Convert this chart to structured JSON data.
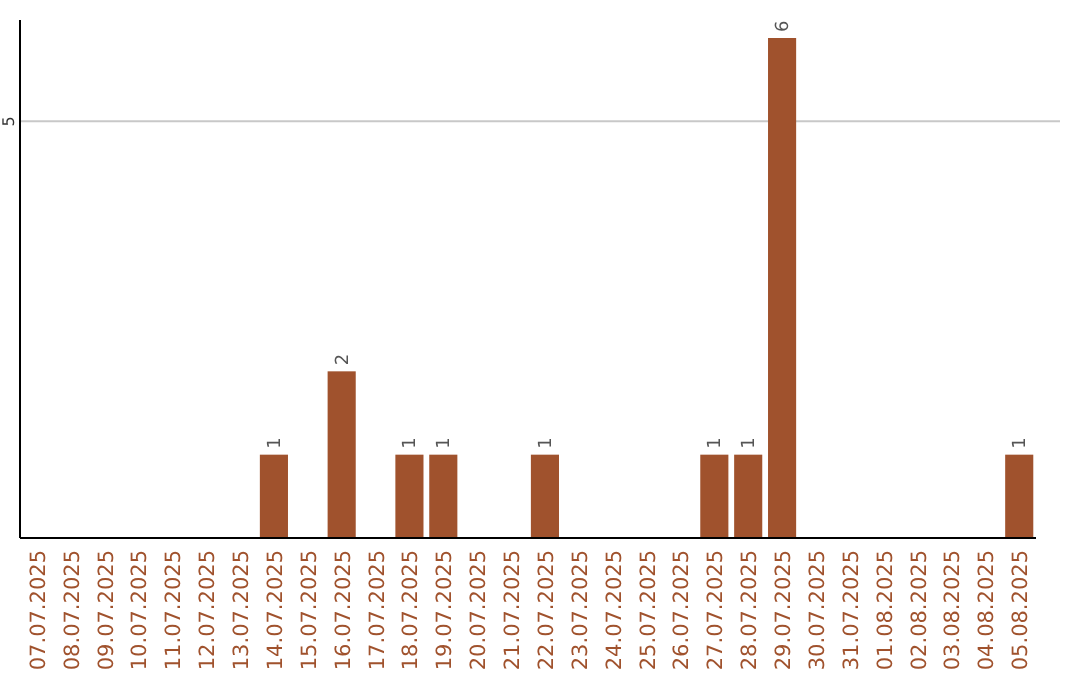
{
  "chart_data": {
    "type": "bar",
    "categories": [
      "07.07.2025",
      "08.07.2025",
      "09.07.2025",
      "10.07.2025",
      "11.07.2025",
      "12.07.2025",
      "13.07.2025",
      "14.07.2025",
      "15.07.2025",
      "16.07.2025",
      "17.07.2025",
      "18.07.2025",
      "19.07.2025",
      "20.07.2025",
      "21.07.2025",
      "22.07.2025",
      "23.07.2025",
      "24.07.2025",
      "25.07.2025",
      "26.07.2025",
      "27.07.2025",
      "28.07.2025",
      "29.07.2025",
      "30.07.2025",
      "31.07.2025",
      "01.08.2025",
      "02.08.2025",
      "03.08.2025",
      "04.08.2025",
      "05.08.2025"
    ],
    "values": [
      0,
      0,
      0,
      0,
      0,
      0,
      0,
      1,
      0,
      2,
      0,
      1,
      1,
      0,
      0,
      1,
      0,
      0,
      0,
      0,
      1,
      1,
      6,
      0,
      0,
      0,
      0,
      0,
      0,
      1
    ],
    "value_labels": [
      null,
      null,
      null,
      null,
      null,
      null,
      null,
      "1",
      null,
      "2",
      null,
      "1",
      "1",
      null,
      null,
      "1",
      null,
      null,
      null,
      null,
      "1",
      "1",
      "6",
      null,
      null,
      null,
      null,
      null,
      null,
      "1"
    ],
    "color": "#a0522d",
    "ylim": [
      0,
      6
    ],
    "yticks": [
      5
    ],
    "grid": "y"
  }
}
